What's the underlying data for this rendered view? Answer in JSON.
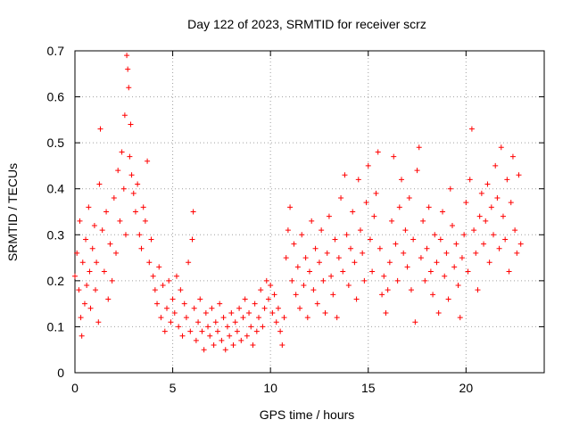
{
  "chart_data": {
    "type": "scatter",
    "title": "Day 122 of 2023, SRMTID for receiver scrz",
    "xlabel": "GPS time / hours",
    "ylabel": "SRMTID / TECUs",
    "xlim": [
      0,
      24
    ],
    "ylim": [
      0,
      0.7
    ],
    "xticks": [
      0,
      5,
      10,
      15,
      20
    ],
    "xtick_labels": [
      "0",
      "5",
      "10",
      "15",
      "20"
    ],
    "yticks": [
      0,
      0.1,
      0.2,
      0.3,
      0.4,
      0.5,
      0.6,
      0.7
    ],
    "ytick_labels": [
      "0",
      "0.1",
      "0.2",
      "0.3",
      "0.4",
      "0.5",
      "0.6",
      "0.7"
    ],
    "grid": true,
    "marker": "+",
    "color": "#ff0000",
    "series": [
      {
        "name": "SRMTID",
        "points": [
          [
            0.0,
            0.21
          ],
          [
            0.1,
            0.26
          ],
          [
            0.2,
            0.18
          ],
          [
            0.25,
            0.33
          ],
          [
            0.3,
            0.12
          ],
          [
            0.35,
            0.08
          ],
          [
            0.4,
            0.24
          ],
          [
            0.5,
            0.15
          ],
          [
            0.55,
            0.29
          ],
          [
            0.6,
            0.19
          ],
          [
            0.7,
            0.36
          ],
          [
            0.75,
            0.22
          ],
          [
            0.8,
            0.14
          ],
          [
            0.9,
            0.27
          ],
          [
            1.0,
            0.32
          ],
          [
            1.05,
            0.18
          ],
          [
            1.1,
            0.24
          ],
          [
            1.2,
            0.11
          ],
          [
            1.25,
            0.41
          ],
          [
            1.3,
            0.53
          ],
          [
            1.4,
            0.31
          ],
          [
            1.5,
            0.22
          ],
          [
            1.6,
            0.35
          ],
          [
            1.7,
            0.16
          ],
          [
            1.8,
            0.28
          ],
          [
            1.9,
            0.2
          ],
          [
            2.0,
            0.38
          ],
          [
            2.1,
            0.26
          ],
          [
            2.2,
            0.44
          ],
          [
            2.3,
            0.33
          ],
          [
            2.4,
            0.48
          ],
          [
            2.5,
            0.4
          ],
          [
            2.55,
            0.56
          ],
          [
            2.6,
            0.3
          ],
          [
            2.65,
            0.69
          ],
          [
            2.7,
            0.66
          ],
          [
            2.75,
            0.62
          ],
          [
            2.8,
            0.47
          ],
          [
            2.85,
            0.54
          ],
          [
            2.9,
            0.43
          ],
          [
            3.0,
            0.39
          ],
          [
            3.1,
            0.35
          ],
          [
            3.2,
            0.41
          ],
          [
            3.3,
            0.3
          ],
          [
            3.4,
            0.27
          ],
          [
            3.5,
            0.36
          ],
          [
            3.6,
            0.33
          ],
          [
            3.7,
            0.46
          ],
          [
            3.8,
            0.24
          ],
          [
            3.9,
            0.29
          ],
          [
            4.0,
            0.21
          ],
          [
            4.1,
            0.18
          ],
          [
            4.2,
            0.15
          ],
          [
            4.3,
            0.23
          ],
          [
            4.4,
            0.12
          ],
          [
            4.5,
            0.19
          ],
          [
            4.6,
            0.09
          ],
          [
            4.7,
            0.14
          ],
          [
            4.8,
            0.2
          ],
          [
            4.9,
            0.11
          ],
          [
            5.0,
            0.16
          ],
          [
            5.1,
            0.13
          ],
          [
            5.2,
            0.21
          ],
          [
            5.3,
            0.1
          ],
          [
            5.4,
            0.18
          ],
          [
            5.5,
            0.08
          ],
          [
            5.6,
            0.15
          ],
          [
            5.7,
            0.12
          ],
          [
            5.8,
            0.24
          ],
          [
            5.9,
            0.09
          ],
          [
            6.0,
            0.29
          ],
          [
            6.05,
            0.35
          ],
          [
            6.1,
            0.14
          ],
          [
            6.2,
            0.07
          ],
          [
            6.3,
            0.11
          ],
          [
            6.4,
            0.16
          ],
          [
            6.5,
            0.09
          ],
          [
            6.6,
            0.05
          ],
          [
            6.7,
            0.13
          ],
          [
            6.8,
            0.1
          ],
          [
            6.9,
            0.08
          ],
          [
            7.0,
            0.14
          ],
          [
            7.1,
            0.06
          ],
          [
            7.2,
            0.11
          ],
          [
            7.3,
            0.09
          ],
          [
            7.4,
            0.15
          ],
          [
            7.5,
            0.07
          ],
          [
            7.6,
            0.12
          ],
          [
            7.7,
            0.05
          ],
          [
            7.8,
            0.1
          ],
          [
            7.9,
            0.08
          ],
          [
            8.0,
            0.13
          ],
          [
            8.1,
            0.06
          ],
          [
            8.2,
            0.11
          ],
          [
            8.3,
            0.09
          ],
          [
            8.4,
            0.14
          ],
          [
            8.5,
            0.07
          ],
          [
            8.6,
            0.12
          ],
          [
            8.7,
            0.16
          ],
          [
            8.8,
            0.08
          ],
          [
            8.9,
            0.13
          ],
          [
            9.0,
            0.1
          ],
          [
            9.1,
            0.06
          ],
          [
            9.2,
            0.15
          ],
          [
            9.3,
            0.09
          ],
          [
            9.4,
            0.12
          ],
          [
            9.5,
            0.18
          ],
          [
            9.6,
            0.1
          ],
          [
            9.7,
            0.14
          ],
          [
            9.8,
            0.2
          ],
          [
            9.9,
            0.16
          ],
          [
            10.0,
            0.19
          ],
          [
            10.1,
            0.13
          ],
          [
            10.2,
            0.17
          ],
          [
            10.3,
            0.11
          ],
          [
            10.4,
            0.14
          ],
          [
            10.5,
            0.09
          ],
          [
            10.6,
            0.06
          ],
          [
            10.7,
            0.12
          ],
          [
            10.8,
            0.25
          ],
          [
            10.9,
            0.31
          ],
          [
            11.0,
            0.36
          ],
          [
            11.1,
            0.2
          ],
          [
            11.2,
            0.28
          ],
          [
            11.3,
            0.17
          ],
          [
            11.4,
            0.23
          ],
          [
            11.5,
            0.14
          ],
          [
            11.6,
            0.3
          ],
          [
            11.7,
            0.19
          ],
          [
            11.8,
            0.25
          ],
          [
            11.9,
            0.12
          ],
          [
            12.0,
            0.22
          ],
          [
            12.1,
            0.33
          ],
          [
            12.2,
            0.18
          ],
          [
            12.3,
            0.27
          ],
          [
            12.4,
            0.15
          ],
          [
            12.5,
            0.24
          ],
          [
            12.6,
            0.31
          ],
          [
            12.7,
            0.2
          ],
          [
            12.8,
            0.13
          ],
          [
            12.9,
            0.26
          ],
          [
            13.0,
            0.34
          ],
          [
            13.1,
            0.21
          ],
          [
            13.2,
            0.17
          ],
          [
            13.3,
            0.29
          ],
          [
            13.4,
            0.12
          ],
          [
            13.5,
            0.25
          ],
          [
            13.6,
            0.38
          ],
          [
            13.7,
            0.22
          ],
          [
            13.8,
            0.43
          ],
          [
            13.9,
            0.3
          ],
          [
            14.0,
            0.19
          ],
          [
            14.1,
            0.27
          ],
          [
            14.2,
            0.35
          ],
          [
            14.3,
            0.24
          ],
          [
            14.4,
            0.16
          ],
          [
            14.5,
            0.42
          ],
          [
            14.6,
            0.31
          ],
          [
            14.7,
            0.26
          ],
          [
            14.8,
            0.2
          ],
          [
            14.9,
            0.37
          ],
          [
            15.0,
            0.45
          ],
          [
            15.1,
            0.29
          ],
          [
            15.2,
            0.22
          ],
          [
            15.3,
            0.34
          ],
          [
            15.4,
            0.39
          ],
          [
            15.5,
            0.48
          ],
          [
            15.6,
            0.27
          ],
          [
            15.7,
            0.17
          ],
          [
            15.8,
            0.21
          ],
          [
            15.9,
            0.13
          ],
          [
            16.0,
            0.18
          ],
          [
            16.1,
            0.24
          ],
          [
            16.2,
            0.33
          ],
          [
            16.3,
            0.47
          ],
          [
            16.4,
            0.28
          ],
          [
            16.5,
            0.2
          ],
          [
            16.6,
            0.36
          ],
          [
            16.7,
            0.42
          ],
          [
            16.8,
            0.26
          ],
          [
            16.9,
            0.31
          ],
          [
            17.0,
            0.23
          ],
          [
            17.1,
            0.38
          ],
          [
            17.2,
            0.18
          ],
          [
            17.3,
            0.29
          ],
          [
            17.4,
            0.11
          ],
          [
            17.5,
            0.44
          ],
          [
            17.6,
            0.49
          ],
          [
            17.7,
            0.25
          ],
          [
            17.8,
            0.33
          ],
          [
            17.9,
            0.2
          ],
          [
            18.0,
            0.27
          ],
          [
            18.1,
            0.36
          ],
          [
            18.2,
            0.22
          ],
          [
            18.3,
            0.17
          ],
          [
            18.4,
            0.3
          ],
          [
            18.5,
            0.24
          ],
          [
            18.6,
            0.13
          ],
          [
            18.7,
            0.29
          ],
          [
            18.8,
            0.35
          ],
          [
            18.9,
            0.21
          ],
          [
            19.0,
            0.26
          ],
          [
            19.1,
            0.16
          ],
          [
            19.2,
            0.4
          ],
          [
            19.3,
            0.32
          ],
          [
            19.4,
            0.23
          ],
          [
            19.5,
            0.28
          ],
          [
            19.6,
            0.19
          ],
          [
            19.7,
            0.12
          ],
          [
            19.8,
            0.25
          ],
          [
            19.9,
            0.3
          ],
          [
            20.0,
            0.37
          ],
          [
            20.1,
            0.22
          ],
          [
            20.2,
            0.42
          ],
          [
            20.3,
            0.53
          ],
          [
            20.4,
            0.31
          ],
          [
            20.5,
            0.26
          ],
          [
            20.6,
            0.18
          ],
          [
            20.7,
            0.34
          ],
          [
            20.8,
            0.39
          ],
          [
            20.9,
            0.28
          ],
          [
            21.0,
            0.33
          ],
          [
            21.1,
            0.41
          ],
          [
            21.2,
            0.24
          ],
          [
            21.3,
            0.36
          ],
          [
            21.4,
            0.3
          ],
          [
            21.5,
            0.45
          ],
          [
            21.6,
            0.38
          ],
          [
            21.7,
            0.27
          ],
          [
            21.8,
            0.49
          ],
          [
            21.9,
            0.34
          ],
          [
            22.0,
            0.29
          ],
          [
            22.1,
            0.42
          ],
          [
            22.2,
            0.22
          ],
          [
            22.3,
            0.37
          ],
          [
            22.4,
            0.47
          ],
          [
            22.5,
            0.31
          ],
          [
            22.6,
            0.26
          ],
          [
            22.7,
            0.43
          ],
          [
            22.8,
            0.28
          ]
        ]
      }
    ]
  }
}
